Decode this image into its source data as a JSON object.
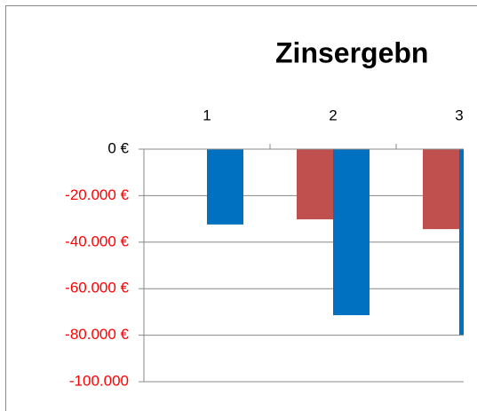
{
  "chart_data": {
    "type": "bar",
    "title": "Zinsergebn",
    "categories": [
      "1",
      "2",
      "3"
    ],
    "series": [
      {
        "color": "#c0504d",
        "values": [
          null,
          -30200,
          -34400
        ]
      },
      {
        "color": "#0070c0",
        "values": [
          -32400,
          -71400,
          -79800
        ]
      }
    ],
    "ylim": [
      -100000,
      0
    ],
    "yticks": [
      {
        "value": 0,
        "label": "0 €"
      },
      {
        "value": -20000,
        "label": "-20.000 €"
      },
      {
        "value": -40000,
        "label": "-40.000 €"
      },
      {
        "value": -60000,
        "label": "-60.000 €"
      },
      {
        "value": -80000,
        "label": "-80.000 €"
      },
      {
        "value": -100000,
        "label": "-100.000"
      }
    ],
    "grid": true,
    "label_color": "#000000",
    "negative_label_color": "#ff0000"
  }
}
